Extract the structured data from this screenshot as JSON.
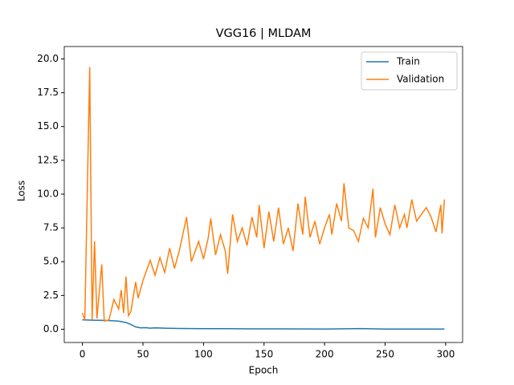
{
  "chart_data": {
    "type": "line",
    "title": "VGG16 | MLDAM",
    "x_label": "Epoch",
    "y_label": "Loss",
    "legend": "upper right",
    "xlim": [
      -15,
      314
    ],
    "ylim": [
      -0.98,
      20.92
    ],
    "xticks": [
      0,
      50,
      100,
      150,
      200,
      250,
      300
    ],
    "yticks": [
      {
        "value": 0,
        "label": "0.0"
      },
      {
        "value": 2.5,
        "label": "2.5"
      },
      {
        "value": 5,
        "label": "5.0"
      },
      {
        "value": 7.5,
        "label": "7.5"
      },
      {
        "value": 10,
        "label": "10.0"
      },
      {
        "value": 12.5,
        "label": "12.5"
      },
      {
        "value": 15,
        "label": "15.0"
      },
      {
        "value": 17.5,
        "label": "17.5"
      },
      {
        "value": 20,
        "label": "20.0"
      }
    ],
    "series": [
      {
        "name": "Train",
        "color": "#1f77b4",
        "x": [
          0,
          10,
          20,
          30,
          36,
          40,
          44,
          48,
          52,
          56,
          60,
          70,
          80,
          90,
          100,
          120,
          140,
          160,
          200,
          230,
          250,
          299
        ],
        "values": [
          0.7,
          0.67,
          0.65,
          0.6,
          0.5,
          0.35,
          0.18,
          0.1,
          0.12,
          0.08,
          0.1,
          0.07,
          0.06,
          0.05,
          0.04,
          0.04,
          0.03,
          0.03,
          0.02,
          0.05,
          0.02,
          0.02
        ]
      },
      {
        "name": "Validation",
        "color": "#ff7f0e",
        "x": [
          0,
          2,
          6,
          8,
          10,
          12,
          16,
          18,
          22,
          26,
          30,
          32,
          34,
          36,
          38,
          40,
          44,
          46,
          50,
          56,
          60,
          64,
          68,
          72,
          76,
          80,
          86,
          90,
          96,
          100,
          104,
          106,
          110,
          114,
          118,
          120,
          124,
          128,
          132,
          136,
          140,
          144,
          146,
          150,
          154,
          158,
          162,
          166,
          170,
          174,
          178,
          182,
          184,
          188,
          192,
          196,
          200,
          204,
          206,
          210,
          214,
          216,
          220,
          224,
          228,
          232,
          236,
          240,
          242,
          246,
          250,
          254,
          258,
          262,
          266,
          268,
          272,
          276,
          280,
          284,
          288,
          292,
          296,
          297,
          299
        ],
        "values": [
          1.2,
          0.7,
          19.4,
          0.7,
          6.5,
          0.8,
          4.8,
          0.6,
          0.7,
          2.2,
          1.5,
          2.9,
          1.2,
          3.9,
          1.0,
          1.3,
          3.5,
          2.3,
          3.6,
          5.1,
          4.0,
          5.3,
          4.2,
          6.0,
          4.5,
          5.8,
          8.3,
          5.0,
          6.5,
          5.2,
          6.8,
          8.2,
          5.5,
          7.0,
          5.8,
          4.1,
          8.5,
          6.5,
          7.5,
          6.2,
          8.3,
          6.8,
          9.2,
          6.0,
          8.7,
          6.5,
          9.0,
          6.3,
          7.5,
          5.8,
          9.3,
          7.0,
          9.8,
          6.8,
          8.0,
          6.3,
          7.5,
          8.5,
          7.0,
          9.3,
          8.0,
          10.8,
          7.5,
          7.3,
          6.5,
          8.2,
          7.5,
          10.4,
          6.8,
          9.0,
          7.8,
          7.0,
          9.2,
          7.5,
          8.5,
          7.5,
          9.6,
          8.0,
          8.5,
          9.0,
          8.3,
          7.2,
          9.2,
          7.1,
          9.6
        ]
      }
    ]
  }
}
